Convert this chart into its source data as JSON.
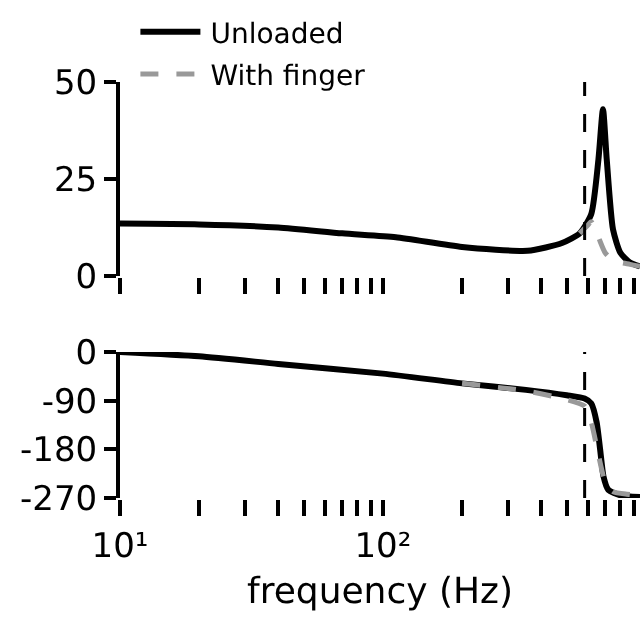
{
  "chart_data": [
    {
      "type": "line",
      "log": "x",
      "grid": false,
      "legend": "top left",
      "tick_labels": "y",
      "xlim": [
        10,
        950
      ],
      "ylim": [
        0,
        50
      ],
      "yticks": [
        0,
        25,
        50
      ],
      "xticks": [
        {
          "value": 10,
          "label": null
        },
        {
          "value": 20,
          "label": null
        },
        {
          "value": 30,
          "label": null
        },
        {
          "value": 40,
          "label": null
        },
        {
          "value": 50,
          "label": null
        },
        {
          "value": 60,
          "label": null
        },
        {
          "value": 70,
          "label": null
        },
        {
          "value": 80,
          "label": null
        },
        {
          "value": 90,
          "label": null
        },
        {
          "value": 100,
          "label": null
        },
        {
          "value": 200,
          "label": null
        },
        {
          "value": 300,
          "label": null
        },
        {
          "value": 400,
          "label": null
        },
        {
          "value": 500,
          "label": null
        },
        {
          "value": 600,
          "label": null
        },
        {
          "value": 700,
          "label": null
        },
        {
          "value": 800,
          "label": null
        },
        {
          "value": 900,
          "label": null
        }
      ],
      "ref_lines": [
        {
          "axis": "x",
          "value": 585,
          "color": "#000000",
          "line_style": "dashed"
        }
      ],
      "series": [
        {
          "name": "Unloaded",
          "color": "#000000",
          "line_style": "solid",
          "x": [
            10,
            20,
            40,
            70,
            112,
            200,
            355,
            480,
            560,
            620,
            660,
            687,
            710,
            750,
            800,
            870,
            950
          ],
          "values": [
            13.5,
            13.3,
            12.5,
            11,
            10,
            7.5,
            6.5,
            8.5,
            11,
            16,
            30,
            43,
            30,
            12,
            6,
            3.5,
            2.5
          ]
        },
        {
          "name": "With finger",
          "color": "#999999",
          "line_style": "dashed",
          "x": [
            560,
            600,
            620,
            660,
            700,
            750,
            870,
            950
          ],
          "values": [
            11,
            13,
            14,
            10,
            6,
            4,
            3,
            2.5
          ]
        }
      ]
    },
    {
      "type": "line",
      "log": "x",
      "grid": false,
      "legend": false,
      "xlabel": "frequency (Hz)",
      "xlim": [
        10,
        950
      ],
      "ylim": [
        -270,
        0
      ],
      "yticks": [
        -270,
        -180,
        -90,
        0
      ],
      "xticks": [
        {
          "value": 10,
          "label": "10¹"
        },
        {
          "value": 20,
          "label": null
        },
        {
          "value": 30,
          "label": null
        },
        {
          "value": 40,
          "label": null
        },
        {
          "value": 50,
          "label": null
        },
        {
          "value": 60,
          "label": null
        },
        {
          "value": 70,
          "label": null
        },
        {
          "value": 80,
          "label": null
        },
        {
          "value": 90,
          "label": null
        },
        {
          "value": 100,
          "label": "10²"
        },
        {
          "value": 200,
          "label": null
        },
        {
          "value": 300,
          "label": null
        },
        {
          "value": 400,
          "label": null
        },
        {
          "value": 500,
          "label": null
        },
        {
          "value": 600,
          "label": null
        },
        {
          "value": 700,
          "label": null
        },
        {
          "value": 800,
          "label": null
        },
        {
          "value": 900,
          "label": null
        }
      ],
      "ref_lines": [
        {
          "axis": "x",
          "value": 585,
          "color": "#000000",
          "line_style": "dashed"
        }
      ],
      "series": [
        {
          "color": "#000000",
          "line_style": "solid",
          "x": [
            10,
            20,
            40,
            100,
            200,
            350,
            500,
            585,
            620,
            650,
            670,
            690,
            720,
            800,
            950
          ],
          "values": [
            0,
            -8,
            -22,
            -40,
            -58,
            -70,
            -80,
            -86,
            -95,
            -130,
            -180,
            -230,
            -255,
            -265,
            -268
          ]
        },
        {
          "color": "#999999",
          "line_style": "dashed",
          "x": [
            200,
            350,
            500,
            585,
            620,
            660,
            700,
            750,
            850,
            950
          ],
          "values": [
            -58,
            -72,
            -88,
            -100,
            -130,
            -190,
            -240,
            -258,
            -263,
            -265
          ]
        }
      ]
    }
  ]
}
